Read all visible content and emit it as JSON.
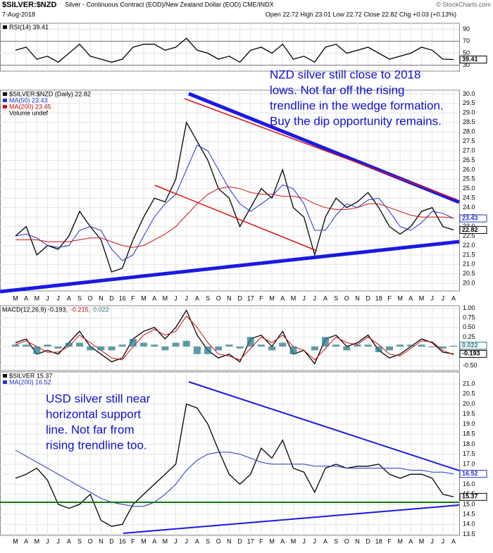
{
  "header": {
    "symbol": "$SILVER:$NZD",
    "description": "Silver - Continuous Contract (EOD)/New Zealand Dollar (EOD) CME/INDX",
    "date": "7-Aug-2018",
    "quote": "Open 22.72  High 23.01  Low 22.72  Close 22.82  Chg +0.03 (+0.13%)",
    "credit": "© StockCharts.com"
  },
  "chart_data": [
    {
      "type": "line",
      "series": [
        {
          "name": "RSI(14) 39.41",
          "color": "#000000",
          "values": [
            55,
            60,
            40,
            45,
            35,
            50,
            65,
            45,
            40,
            35,
            40,
            60,
            65,
            65,
            55,
            60,
            75,
            55,
            50,
            40,
            45,
            35,
            55,
            60,
            50,
            65,
            40,
            45,
            35,
            60,
            65,
            50,
            55,
            60,
            50,
            40,
            45,
            50,
            60,
            55,
            40,
            39.41
          ]
        }
      ],
      "ylim": [
        20,
        100
      ],
      "yticks": [
        30,
        50,
        70,
        90
      ],
      "guides": [
        30,
        70
      ],
      "tags": [
        {
          "value": 39.41,
          "color": "#000000"
        }
      ]
    },
    {
      "type": "line",
      "categories": [
        "M",
        "A",
        "M",
        "J",
        "J",
        "A",
        "S",
        "O",
        "N",
        "D",
        "16",
        "F",
        "M",
        "A",
        "M",
        "J",
        "J",
        "A",
        "S",
        "O",
        "N",
        "D",
        "17",
        "F",
        "M",
        "A",
        "M",
        "J",
        "J",
        "A",
        "S",
        "O",
        "N",
        "D",
        "18",
        "F",
        "M",
        "A",
        "M",
        "J",
        "J",
        "A"
      ],
      "series": [
        {
          "name": "$SILVER:$NZD (Daily) 22.82",
          "color": "#000000",
          "values": [
            22.5,
            23.0,
            21.5,
            22.0,
            21.8,
            22.5,
            23.8,
            23.0,
            22.3,
            20.6,
            20.8,
            22.3,
            23.5,
            24.5,
            24.3,
            25.5,
            28.5,
            27.5,
            26.5,
            25.0,
            24.5,
            23.0,
            24.0,
            25.0,
            24.5,
            26.0,
            24.0,
            23.5,
            21.5,
            23.5,
            24.5,
            24.0,
            24.3,
            24.8,
            24.0,
            23.0,
            22.6,
            23.0,
            23.8,
            24.0,
            23.0,
            22.82
          ]
        },
        {
          "name": "MA(50) 23.43",
          "color": "#2233cc",
          "values": [
            22.5,
            22.6,
            22.4,
            22.0,
            21.9,
            22.0,
            22.8,
            23.0,
            22.8,
            21.8,
            21.2,
            21.5,
            22.5,
            23.5,
            24.2,
            24.7,
            26.0,
            27.3,
            27.0,
            26.0,
            25.0,
            24.2,
            23.8,
            24.2,
            24.6,
            25.2,
            25.0,
            24.2,
            22.8,
            22.8,
            23.6,
            24.2,
            24.0,
            24.4,
            24.5,
            23.8,
            23.0,
            22.8,
            23.2,
            23.8,
            23.7,
            23.43
          ]
        },
        {
          "name": "MA(200) 23.45",
          "color": "#cc1111",
          "values": [
            22.3,
            22.3,
            22.3,
            22.2,
            22.2,
            22.2,
            22.3,
            22.4,
            22.4,
            22.2,
            22.0,
            21.9,
            22.0,
            22.3,
            22.6,
            23.0,
            23.6,
            24.2,
            24.7,
            25.0,
            25.1,
            25.0,
            24.8,
            24.7,
            24.7,
            24.6,
            24.6,
            24.5,
            24.2,
            24.0,
            23.9,
            23.9,
            24.0,
            24.2,
            24.2,
            24.0,
            23.8,
            23.6,
            23.5,
            23.5,
            23.5,
            23.45
          ]
        }
      ],
      "legend_extra": "Volume undef",
      "ylim": [
        19.6,
        30.2
      ],
      "yticks": [
        {
          "value": 20,
          "label": "20.0"
        },
        {
          "value": 20.5,
          "label": "20.5"
        },
        {
          "value": 21,
          "label": "21.0"
        },
        {
          "value": 21.5,
          "label": "21.5"
        },
        {
          "value": 22,
          "label": "22.0"
        },
        {
          "value": 22.5,
          "label": "22.5"
        },
        {
          "value": 23,
          "label": "23.0"
        },
        {
          "value": 23.5,
          "label": "23.5"
        },
        {
          "value": 24,
          "label": "24.0"
        },
        {
          "value": 24.5,
          "label": "24.5"
        },
        {
          "value": 25,
          "label": "25.0"
        },
        {
          "value": 25.5,
          "label": "25.5"
        },
        {
          "value": 26,
          "label": "26.0"
        },
        {
          "value": 26.5,
          "label": "26.5"
        },
        {
          "value": 27,
          "label": "27.0"
        },
        {
          "value": 27.5,
          "label": "27.5"
        },
        {
          "value": 28,
          "label": "28.0"
        },
        {
          "value": 28.5,
          "label": "28.5"
        },
        {
          "value": 29,
          "label": "29.0"
        },
        {
          "value": 29.5,
          "label": "29.5"
        },
        {
          "value": 30,
          "label": "30.0"
        }
      ],
      "tags": [
        {
          "value": 23.43,
          "color": "#2233cc"
        },
        {
          "value": 22.82,
          "color": "#000000"
        }
      ],
      "annotation": [
        "NZD silver still close to 2018",
        "lows. Not far off the rising",
        "trendline in the wedge formation.",
        "Buy the dip opportunity remains."
      ]
    },
    {
      "type": "line",
      "series": [
        {
          "name": "MACD(12,26,9) -0.193,",
          "color": "#000000",
          "values": [
            0.1,
            0.2,
            -0.2,
            -0.1,
            -0.2,
            0.1,
            0.4,
            0.0,
            -0.2,
            -0.4,
            -0.3,
            0.2,
            0.4,
            0.5,
            0.2,
            0.5,
            0.95,
            0.3,
            -0.1,
            -0.3,
            -0.2,
            -0.4,
            0.2,
            0.3,
            0.0,
            0.4,
            -0.2,
            -0.1,
            -0.45,
            0.2,
            0.3,
            0.0,
            0.1,
            0.3,
            -0.1,
            -0.3,
            -0.2,
            0.0,
            0.2,
            0.1,
            -0.15,
            -0.193
          ]
        },
        {
          "name": "-0.215,",
          "color": "#cc1111",
          "values": [
            0.05,
            0.15,
            0.0,
            -0.15,
            -0.15,
            0.0,
            0.3,
            0.1,
            -0.1,
            -0.3,
            -0.35,
            0.0,
            0.3,
            0.45,
            0.3,
            0.4,
            0.8,
            0.5,
            0.1,
            -0.2,
            -0.25,
            -0.35,
            -0.05,
            0.25,
            0.1,
            0.3,
            0.0,
            -0.1,
            -0.35,
            -0.05,
            0.25,
            0.1,
            0.05,
            0.25,
            0.05,
            -0.2,
            -0.25,
            -0.05,
            0.15,
            0.12,
            -0.1,
            -0.215
          ]
        },
        {
          "name": "0.022",
          "color": "#2a7a8a",
          "bars": true,
          "values": [
            0.05,
            0.05,
            -0.2,
            0.05,
            -0.05,
            0.1,
            0.1,
            -0.1,
            -0.1,
            -0.1,
            0.05,
            0.2,
            0.1,
            0.05,
            -0.1,
            0.1,
            0.15,
            -0.2,
            -0.2,
            -0.1,
            0.05,
            -0.05,
            0.25,
            0.05,
            -0.1,
            0.1,
            -0.2,
            0,
            -0.1,
            0.25,
            0.05,
            -0.1,
            0.05,
            0.05,
            -0.15,
            -0.1,
            0.05,
            0.05,
            0.05,
            -0.02,
            -0.05,
            0.022
          ]
        }
      ],
      "ylim": [
        -0.63,
        1.07
      ],
      "yticks": [
        {
          "value": -0.5,
          "label": "-0.50"
        },
        {
          "value": -0.25,
          "label": "-0.25"
        },
        {
          "value": 0,
          "label": "0.00"
        },
        {
          "value": 0.25,
          "label": "0.25"
        },
        {
          "value": 0.5,
          "label": "0.50"
        },
        {
          "value": 0.75,
          "label": "0.75"
        },
        {
          "value": 1,
          "label": "1.00"
        }
      ],
      "tags": [
        {
          "value": 0.022,
          "color": "#2a7a8a"
        },
        {
          "value": -0.193,
          "color": "#000000"
        }
      ]
    },
    {
      "type": "line",
      "categories": [
        "M",
        "A",
        "M",
        "J",
        "J",
        "A",
        "S",
        "O",
        "N",
        "D",
        "16",
        "F",
        "M",
        "A",
        "M",
        "J",
        "J",
        "A",
        "S",
        "O",
        "N",
        "D",
        "17",
        "F",
        "M",
        "A",
        "M",
        "J",
        "J",
        "A",
        "S",
        "O",
        "N",
        "D",
        "18",
        "F",
        "M",
        "A",
        "M",
        "J",
        "J",
        "A"
      ],
      "series": [
        {
          "name": "$SILVER 15.37",
          "color": "#000000",
          "values": [
            16.3,
            16.5,
            16.8,
            16.2,
            15.0,
            14.8,
            15.0,
            15.5,
            14.2,
            13.9,
            14.0,
            15.0,
            15.5,
            16.0,
            16.5,
            17.0,
            20.0,
            19.8,
            19.0,
            17.7,
            16.5,
            16.0,
            16.5,
            17.8,
            17.3,
            18.2,
            16.8,
            16.6,
            15.6,
            16.8,
            17.0,
            16.8,
            16.9,
            16.9,
            17.0,
            16.5,
            16.3,
            16.5,
            16.5,
            16.3,
            15.5,
            15.37
          ]
        },
        {
          "name": "MA(200) 16.52",
          "color": "#2233cc",
          "values": [
            17.7,
            17.4,
            17.1,
            16.8,
            16.5,
            16.2,
            15.9,
            15.6,
            15.3,
            15.1,
            15.0,
            14.9,
            14.9,
            15.1,
            15.5,
            16.0,
            16.7,
            17.2,
            17.5,
            17.6,
            17.6,
            17.5,
            17.3,
            17.1,
            17.0,
            17.0,
            17.0,
            17.0,
            16.9,
            16.9,
            16.9,
            16.8,
            16.8,
            16.8,
            16.8,
            16.8,
            16.8,
            16.7,
            16.7,
            16.6,
            16.6,
            16.52
          ]
        }
      ],
      "ylim": [
        13.45,
        21.6
      ],
      "yticks": [
        {
          "value": 13.5,
          "label": "13.5"
        },
        {
          "value": 14,
          "label": "14.0"
        },
        {
          "value": 14.5,
          "label": "14.5"
        },
        {
          "value": 15,
          "label": "15.0"
        },
        {
          "value": 15.5,
          "label": "15.5"
        },
        {
          "value": 16,
          "label": "16.0"
        },
        {
          "value": 16.5,
          "label": "16.5"
        },
        {
          "value": 17,
          "label": "17.0"
        },
        {
          "value": 17.5,
          "label": "17.5"
        },
        {
          "value": 18,
          "label": "18.0"
        },
        {
          "value": 18.5,
          "label": "18.5"
        },
        {
          "value": 19,
          "label": "19.0"
        },
        {
          "value": 19.5,
          "label": "19.5"
        },
        {
          "value": 20,
          "label": "20.0"
        },
        {
          "value": 20.5,
          "label": "20.5"
        },
        {
          "value": 21,
          "label": "21.0"
        }
      ],
      "tags": [
        {
          "value": 16.52,
          "color": "#2233cc"
        },
        {
          "value": 15.37,
          "color": "#000000"
        }
      ],
      "annotation": [
        "USD silver still near",
        "horizontal support",
        "line. Not far from",
        "rising trendline too."
      ]
    }
  ]
}
